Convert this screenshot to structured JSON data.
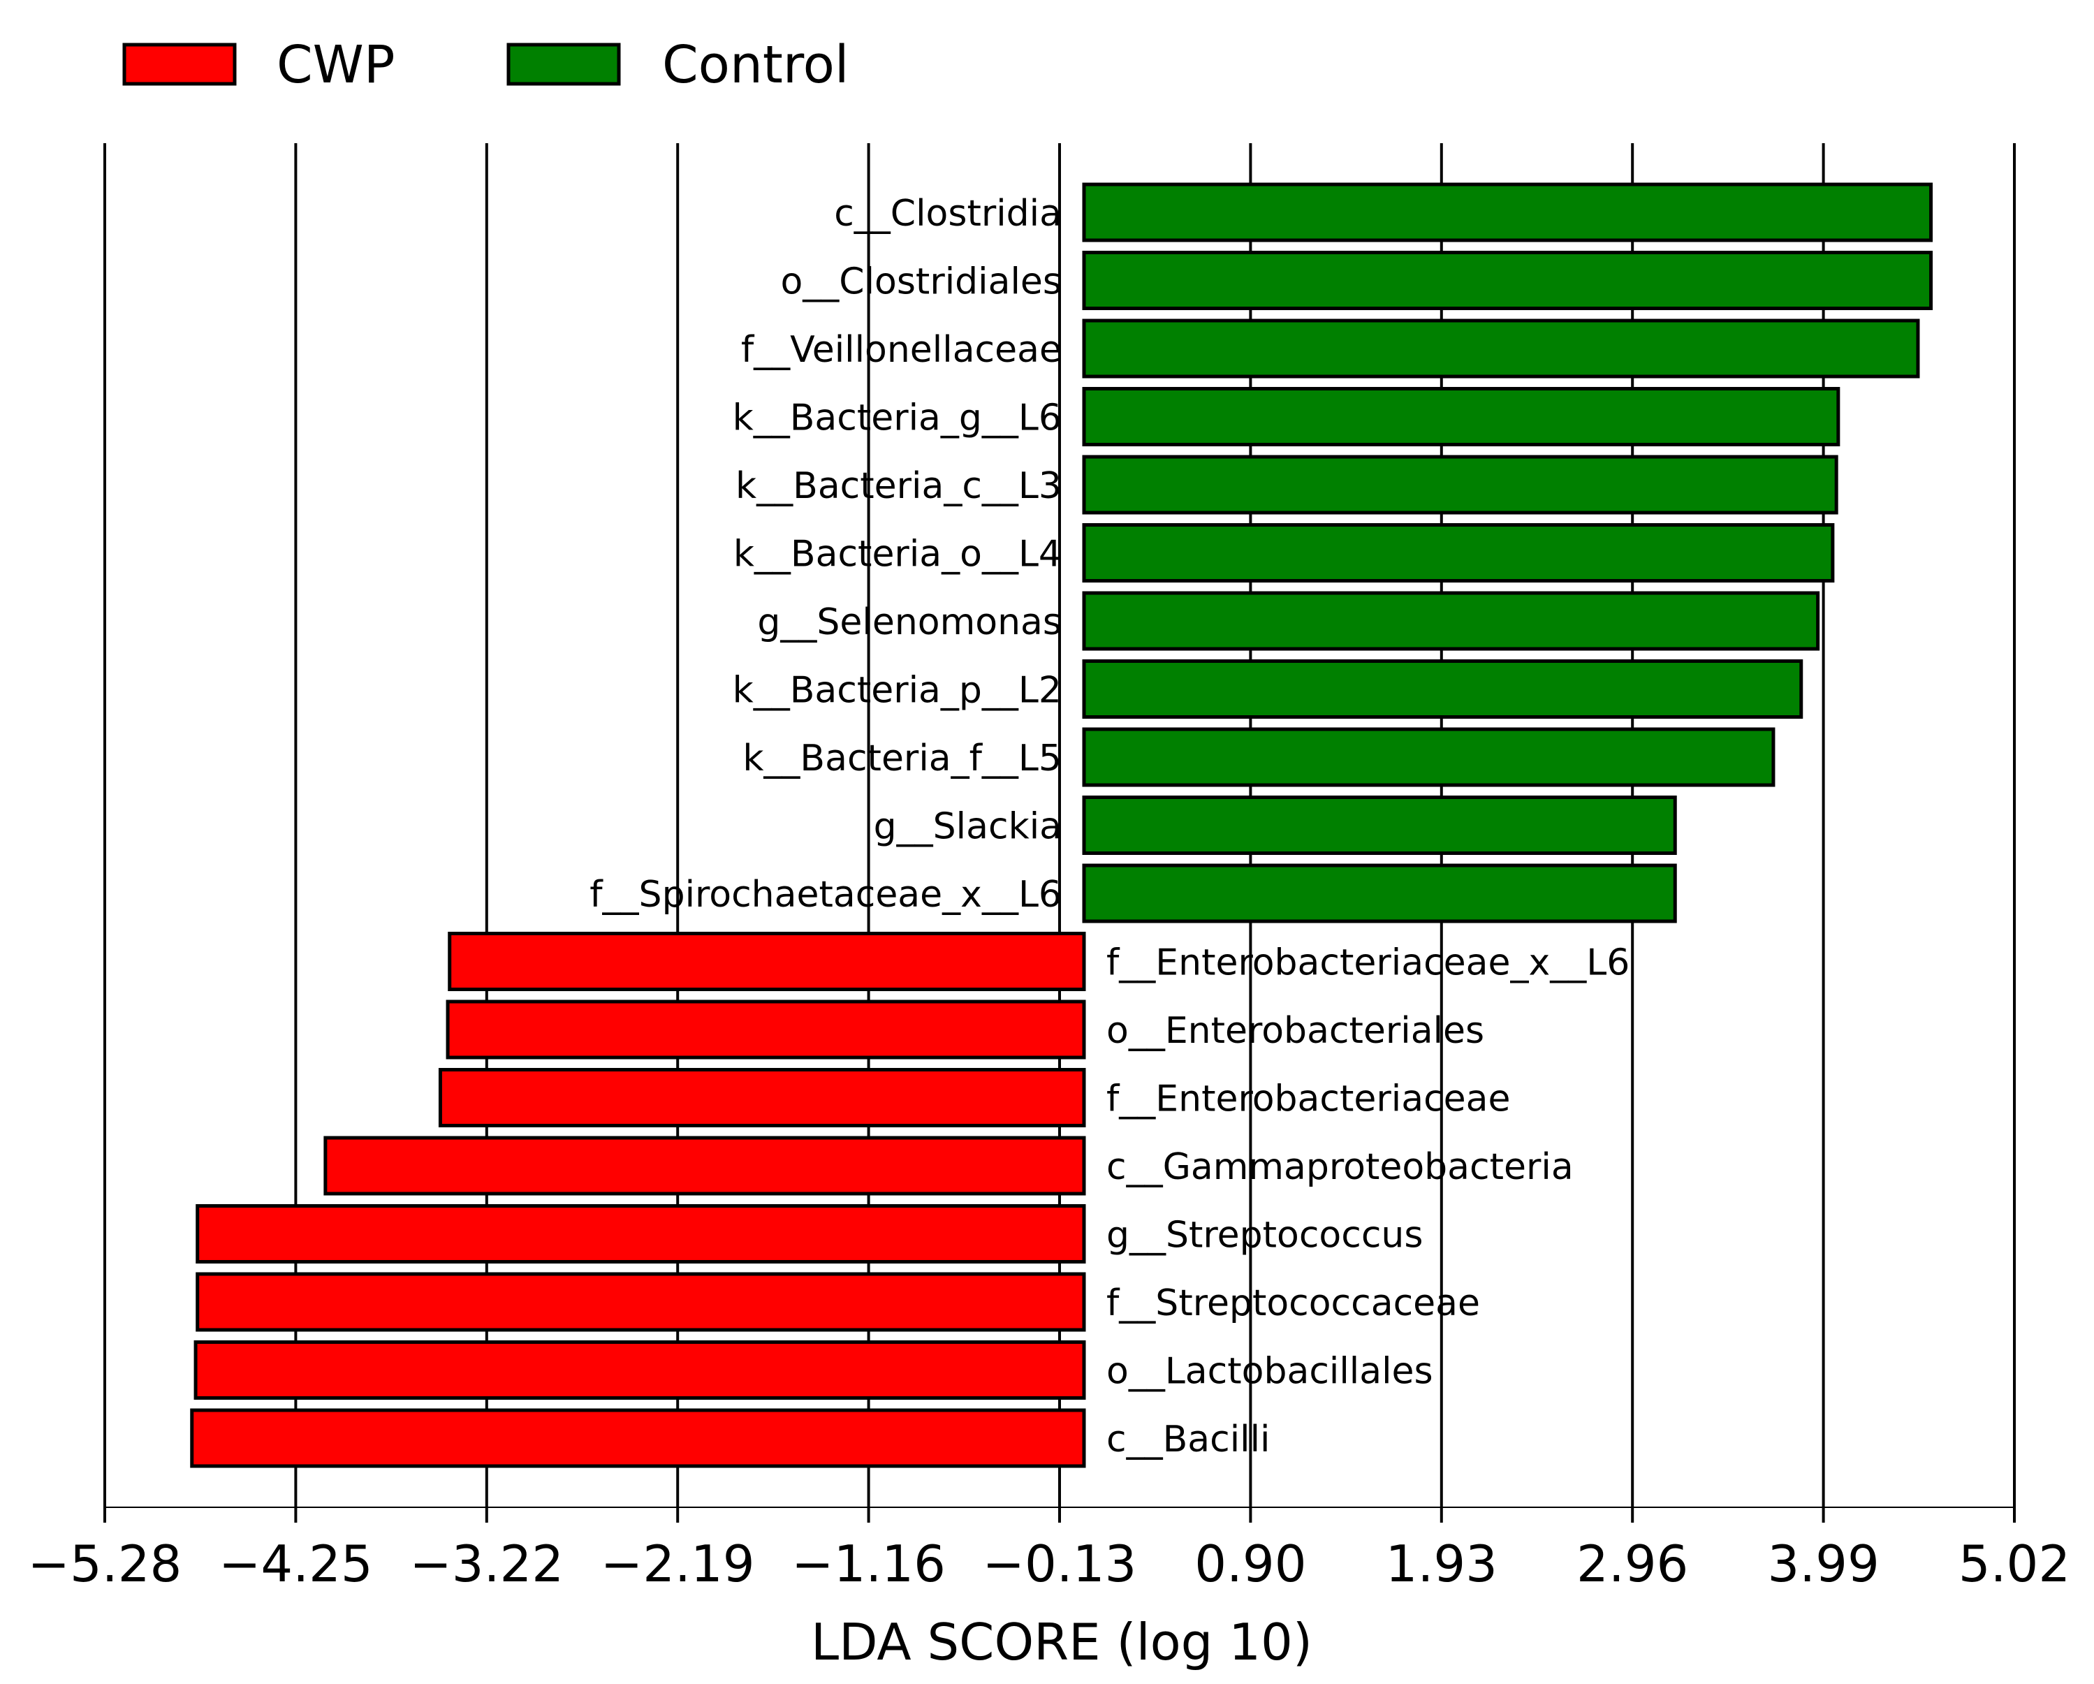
{
  "chart_data": {
    "type": "bar",
    "orientation": "horizontal",
    "title": "",
    "xlabel": "LDA SCORE (log 10)",
    "ylabel": "",
    "xlim": [
      -5.28,
      5.02
    ],
    "x_ticks": [
      "−5.28",
      "−4.25",
      "−3.22",
      "−2.19",
      "−1.16",
      "−0.13",
      "0.90",
      "1.93",
      "2.96",
      "3.99",
      "5.02"
    ],
    "x_tick_values": [
      -5.28,
      -4.25,
      -3.22,
      -2.19,
      -1.16,
      -0.13,
      0.9,
      1.93,
      2.96,
      3.99,
      5.02
    ],
    "grid": "vertical",
    "legend": {
      "position": "top-left",
      "entries": [
        {
          "label": "CWP",
          "color": "#ff0000"
        },
        {
          "label": "Control",
          "color": "#008000"
        }
      ]
    },
    "series": [
      {
        "name": "Control",
        "color": "#008000",
        "items": [
          {
            "label": "c__Clostridia",
            "value": 4.57
          },
          {
            "label": "o__Clostridiales",
            "value": 4.57
          },
          {
            "label": "f__Veillonellaceae",
            "value": 4.5
          },
          {
            "label": "k__Bacteria_g__L6",
            "value": 4.07
          },
          {
            "label": "k__Bacteria_c__L3",
            "value": 4.06
          },
          {
            "label": "k__Bacteria_o__L4",
            "value": 4.04
          },
          {
            "label": "g__Selenomonas",
            "value": 3.96
          },
          {
            "label": "k__Bacteria_p__L2",
            "value": 3.87
          },
          {
            "label": "k__Bacteria_f__L5",
            "value": 3.72
          },
          {
            "label": "g__Slackia",
            "value": 3.19
          },
          {
            "label": "f__Spirochaetaceae_x__L6",
            "value": 3.19
          }
        ]
      },
      {
        "name": "CWP",
        "color": "#ff0000",
        "items": [
          {
            "label": "f__Enterobacteriaceae_x__L6",
            "value": -3.42
          },
          {
            "label": "o__Enterobacteriales",
            "value": -3.43
          },
          {
            "label": "f__Enterobacteriaceae",
            "value": -3.47
          },
          {
            "label": "c__Gammaproteobacteria",
            "value": -4.09
          },
          {
            "label": "g__Streptococcus",
            "value": -4.78
          },
          {
            "label": "f__Streptococcaceae",
            "value": -4.78
          },
          {
            "label": "o__Lactobacillales",
            "value": -4.79
          },
          {
            "label": "c__Bacilli",
            "value": -4.81
          }
        ]
      }
    ]
  }
}
